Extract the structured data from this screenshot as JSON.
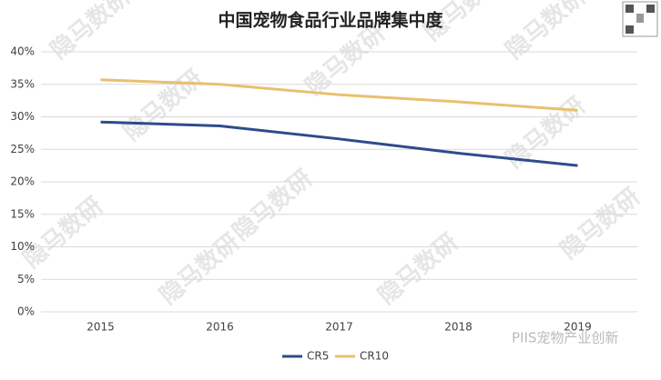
{
  "chart_data": {
    "type": "line",
    "title": "中国宠物食品行业品牌集中度",
    "categories": [
      "2015",
      "2016",
      "2017",
      "2018",
      "2019"
    ],
    "series": [
      {
        "name": "CR5",
        "color": "#2f4b8c",
        "values": [
          29.2,
          28.6,
          26.6,
          24.4,
          22.5
        ]
      },
      {
        "name": "CR10",
        "color": "#e8c06f",
        "values": [
          35.7,
          35.0,
          33.4,
          32.3,
          31.0
        ]
      }
    ],
    "ylim": [
      0,
      40
    ],
    "yticks": [
      {
        "value": 0,
        "label": "0%"
      },
      {
        "value": 5,
        "label": "5%"
      },
      {
        "value": 10,
        "label": "10%"
      },
      {
        "value": 15,
        "label": "15%"
      },
      {
        "value": 20,
        "label": "20%"
      },
      {
        "value": 25,
        "label": "25%"
      },
      {
        "value": 30,
        "label": "30%"
      },
      {
        "value": 35,
        "label": "35%"
      },
      {
        "value": 40,
        "label": "40%"
      }
    ],
    "grid": true,
    "legend": "bottom",
    "watermark": "隐马数研",
    "source": "PIIS宠物产业创新"
  }
}
